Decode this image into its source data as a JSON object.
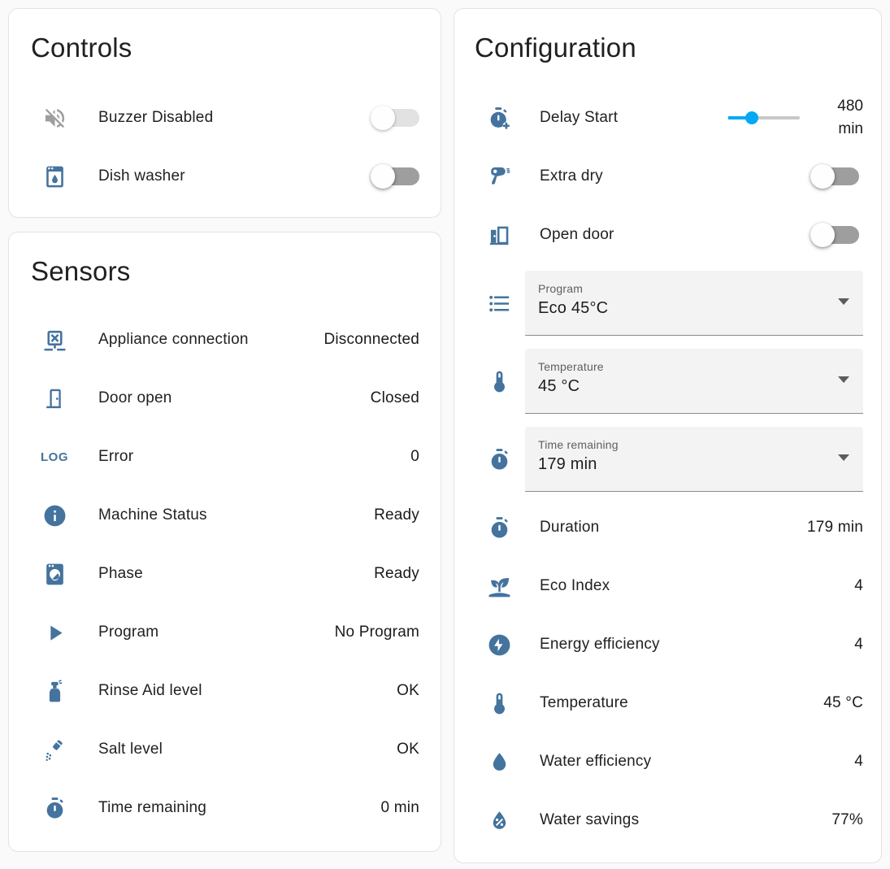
{
  "colors": {
    "icon_accent": "#44739e",
    "icon_muted": "#9e9e9e",
    "slider_active": "#03a9f4",
    "switch_track_off": "#9e9e9e"
  },
  "controls": {
    "title": "Controls",
    "items": [
      {
        "icon": "volume-off-icon",
        "label": "Buzzer Disabled",
        "type": "toggle",
        "state": "off",
        "disabled": true
      },
      {
        "icon": "dishwasher-icon",
        "label": "Dish washer",
        "type": "toggle",
        "state": "off",
        "disabled": false
      }
    ]
  },
  "sensors": {
    "title": "Sensors",
    "items": [
      {
        "icon": "appliance-disconnected-icon",
        "label": "Appliance connection",
        "value": "Disconnected"
      },
      {
        "icon": "door-icon",
        "label": "Door open",
        "value": "Closed"
      },
      {
        "icon": "math-log-icon",
        "icon_text": "LOG",
        "label": "Error",
        "value": "0"
      },
      {
        "icon": "information-icon",
        "label": "Machine Status",
        "value": "Ready"
      },
      {
        "icon": "washing-machine-icon",
        "label": "Phase",
        "value": "Ready"
      },
      {
        "icon": "play-icon",
        "label": "Program",
        "value": "No Program"
      },
      {
        "icon": "spray-bottle-icon",
        "label": "Rinse Aid level",
        "value": "OK"
      },
      {
        "icon": "shaker-icon",
        "label": "Salt level",
        "value": "OK"
      },
      {
        "icon": "timer-icon",
        "label": "Time remaining",
        "value": "0 min"
      }
    ]
  },
  "configuration": {
    "title": "Configuration",
    "delay_start": {
      "icon": "timer-plus-icon",
      "label": "Delay Start",
      "value": "480",
      "unit": "min",
      "percent": 33
    },
    "toggles": [
      {
        "icon": "hair-dryer-icon",
        "label": "Extra dry",
        "state": "off"
      },
      {
        "icon": "door-open-icon",
        "label": "Open door",
        "state": "off"
      }
    ],
    "selects": [
      {
        "icon": "format-list-bulleted-icon",
        "label": "Program",
        "value": "Eco 45°C"
      },
      {
        "icon": "thermometer-icon",
        "label": "Temperature",
        "value": "45 °C"
      },
      {
        "icon": "timer-icon",
        "label": "Time remaining",
        "value": "179 min"
      }
    ],
    "info_rows": [
      {
        "icon": "timer-icon",
        "label": "Duration",
        "value": "179 min"
      },
      {
        "icon": "sprout-icon",
        "label": "Eco Index",
        "value": "4"
      },
      {
        "icon": "flash-circle-icon",
        "label": "Energy efficiency",
        "value": "4"
      },
      {
        "icon": "thermometer-icon",
        "label": "Temperature",
        "value": "45 °C"
      },
      {
        "icon": "water-icon",
        "label": "Water efficiency",
        "value": "4"
      },
      {
        "icon": "water-percent-icon",
        "label": "Water savings",
        "value": "77%"
      }
    ]
  }
}
